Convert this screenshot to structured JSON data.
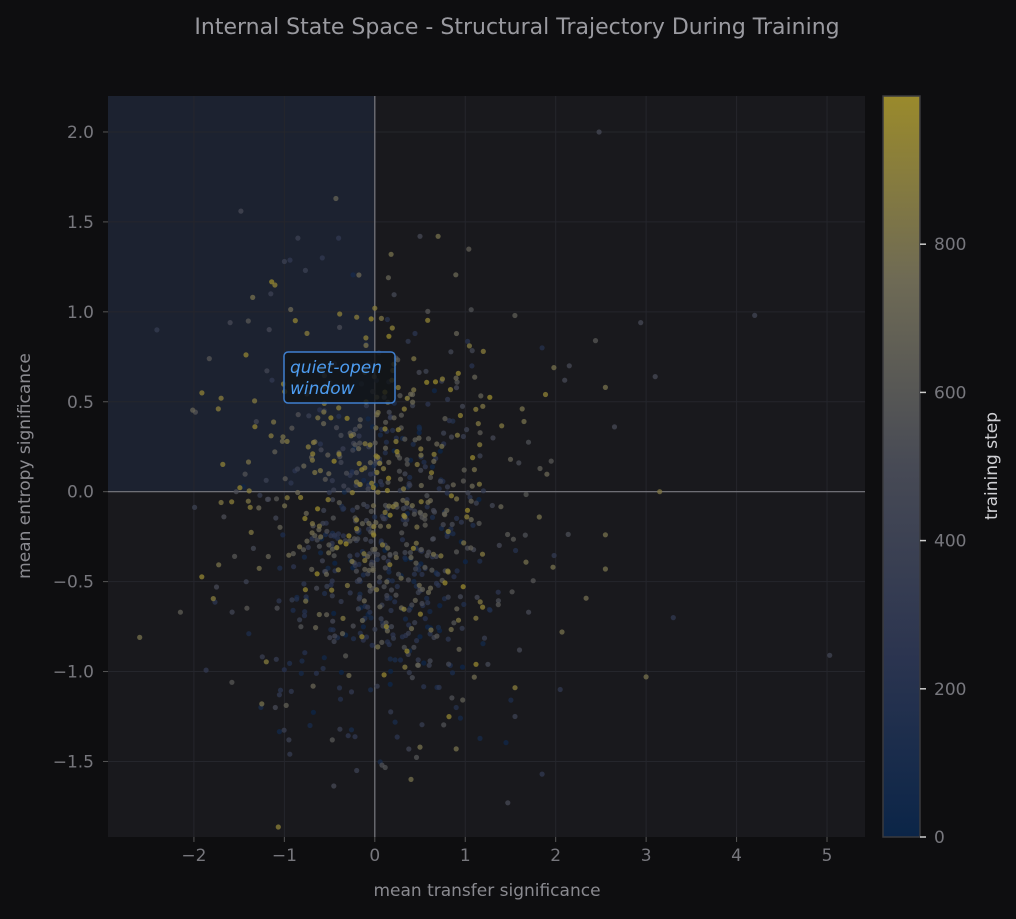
{
  "chart_data": {
    "type": "scatter",
    "title": "Internal State Space  - Structural Trajectory During Training",
    "xlabel": "mean transfer significance",
    "ylabel": "mean entropy significance",
    "xlim": [
      -2.95,
      5.42
    ],
    "ylim": [
      -1.92,
      2.2
    ],
    "x_ticks": [
      -2,
      -1,
      0,
      1,
      2,
      3,
      4,
      5
    ],
    "x_tick_labels": [
      "−2",
      "−1",
      "0",
      "1",
      "2",
      "3",
      "4",
      "5"
    ],
    "y_ticks": [
      -1.5,
      -1.0,
      -0.5,
      0.0,
      0.5,
      1.0,
      1.5,
      2.0
    ],
    "y_tick_labels": [
      "−1.5",
      "−1.0",
      "−0.5",
      "0.0",
      "0.5",
      "1.0",
      "1.5",
      "2.0"
    ],
    "grid": true,
    "reference_lines": {
      "x": 0,
      "y": 0
    },
    "shaded_region": {
      "x": [
        -2.95,
        0
      ],
      "y": [
        0,
        2.2
      ]
    },
    "annotation": {
      "text_line1": "quiet-open",
      "text_line2": "window",
      "x": -1.0,
      "y": 0.6
    },
    "colorbar": {
      "label": "training step",
      "range": [
        0,
        999
      ],
      "ticks": [
        0,
        200,
        400,
        600,
        800
      ],
      "tick_labels": [
        "0",
        "200",
        "400",
        "600",
        "800"
      ],
      "colors": [
        "#0b2548",
        "#2c3550",
        "#474a55",
        "#6e6a55",
        "#9a8a2c"
      ]
    },
    "points": [
      [
        2.48,
        2.0,
        500
      ],
      [
        -0.43,
        1.63,
        700
      ],
      [
        -1.48,
        1.56,
        500
      ],
      [
        4.2,
        0.98,
        450
      ],
      [
        5.03,
        -0.91,
        450
      ],
      [
        -2.6,
        -0.81,
        800
      ],
      [
        3.15,
        0.0,
        850
      ],
      [
        3.0,
        -1.03,
        800
      ],
      [
        -2.15,
        -0.67,
        650
      ],
      [
        -1.83,
        0.74,
        600
      ],
      [
        1.47,
        -1.73,
        500
      ],
      [
        0.08,
        -1.52,
        550
      ],
      [
        -0.2,
        -1.55,
        400
      ],
      [
        0.7,
        1.42,
        800
      ],
      [
        0.5,
        1.42,
        500
      ],
      [
        -0.85,
        1.41,
        400
      ],
      [
        -0.4,
        1.41,
        300
      ],
      [
        -1.0,
        1.28,
        400
      ],
      [
        0.18,
        1.32,
        800
      ],
      [
        -1.35,
        1.08,
        800
      ],
      [
        -1.15,
        1.1,
        400
      ],
      [
        -0.58,
        1.3,
        300
      ],
      [
        -1.6,
        0.94,
        500
      ],
      [
        2.55,
        -0.24,
        800
      ],
      [
        2.55,
        -0.43,
        800
      ],
      [
        2.07,
        -0.78,
        800
      ],
      [
        1.97,
        -0.42,
        800
      ],
      [
        3.3,
        -0.7,
        300
      ],
      [
        1.85,
        -1.57,
        300
      ],
      [
        1.85,
        0.8,
        200
      ],
      [
        2.94,
        0.94,
        500
      ],
      [
        3.1,
        0.64,
        500
      ],
      [
        2.65,
        0.36,
        500
      ],
      [
        2.55,
        0.58,
        800
      ],
      [
        2.44,
        0.84,
        600
      ],
      [
        -1.1,
        -1.2,
        500
      ],
      [
        -1.25,
        -1.18,
        800
      ],
      [
        -0.95,
        -1.38,
        400
      ],
      [
        -0.47,
        -1.38,
        600
      ],
      [
        0.4,
        -1.6,
        800
      ],
      [
        0.9,
        -1.43,
        800
      ],
      [
        0.5,
        -1.42,
        800
      ],
      [
        1.55,
        -1.25,
        400
      ],
      [
        -1.58,
        -1.06,
        600
      ],
      [
        -1.75,
        -0.53,
        500
      ],
      [
        -1.7,
        -0.06,
        850
      ],
      [
        -1.73,
        0.46,
        900
      ],
      [
        -1.7,
        0.52,
        900
      ],
      [
        -1.55,
        -0.36,
        600
      ],
      [
        1.7,
        -0.67,
        500
      ],
      [
        1.6,
        -0.88,
        500
      ],
      [
        1.55,
        -1.09,
        900
      ],
      [
        2.05,
        -1.1,
        300
      ],
      [
        1.95,
        0.17,
        600
      ],
      [
        2.1,
        0.62,
        500
      ],
      [
        2.15,
        0.7,
        500
      ],
      [
        1.98,
        0.69,
        800
      ],
      [
        1.65,
        0.39,
        800
      ],
      [
        1.63,
        0.46,
        800
      ],
      [
        0.15,
        1.19,
        700
      ],
      [
        0.0,
        1.02,
        900
      ],
      [
        -0.2,
        0.97,
        900
      ],
      [
        -0.75,
        0.88,
        900
      ],
      [
        1.2,
        0.78,
        900
      ],
      [
        0.9,
        -1.2,
        200
      ]
    ],
    "cloud": {
      "count": 900,
      "x_mean": 0.15,
      "x_std": 0.72,
      "y_mean": -0.05,
      "y_std": 0.52,
      "step_range": [
        0,
        999
      ]
    }
  }
}
